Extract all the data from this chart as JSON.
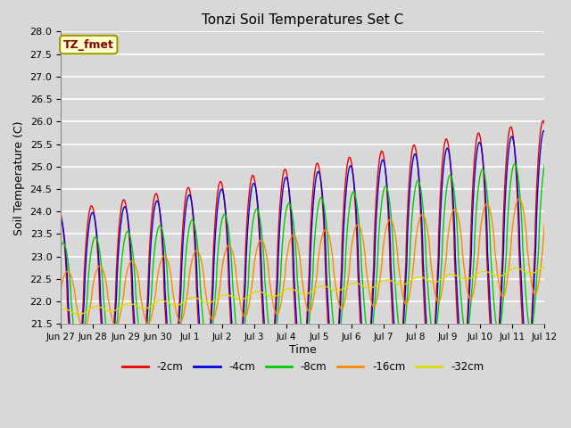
{
  "title": "Tonzi Soil Temperatures Set C",
  "xlabel": "Time",
  "ylabel": "Soil Temperature (C)",
  "ylim": [
    21.5,
    28.0
  ],
  "annotation_text": "TZ_fmet",
  "annotation_color": "#8B0000",
  "annotation_bg": "#FFFFCC",
  "annotation_border": "#999900",
  "series": {
    "-2cm": {
      "color": "#EE0000",
      "lw": 1.0
    },
    "-4cm": {
      "color": "#0000DD",
      "lw": 1.0
    },
    "-8cm": {
      "color": "#00CC00",
      "lw": 1.0
    },
    "-16cm": {
      "color": "#FF8800",
      "lw": 1.0
    },
    "-32cm": {
      "color": "#DDDD00",
      "lw": 1.0
    }
  },
  "legend_order": [
    "-2cm",
    "-4cm",
    "-8cm",
    "-16cm",
    "-32cm"
  ],
  "bg_color": "#D8D8D8",
  "plot_bg": "#D8D8D8",
  "grid_color": "#FFFFFF",
  "x_tick_labels": [
    "Jun 27",
    "Jun 28",
    "Jun 29",
    "Jun 30",
    "Jul 1",
    "Jul 2",
    "Jul 3",
    "Jul 4",
    "Jul 5",
    "Jul 6",
    "Jul 7",
    "Jul 8",
    "Jul 9",
    "Jul 10",
    "Jul 11",
    "Jul 12"
  ],
  "n_points": 1500
}
